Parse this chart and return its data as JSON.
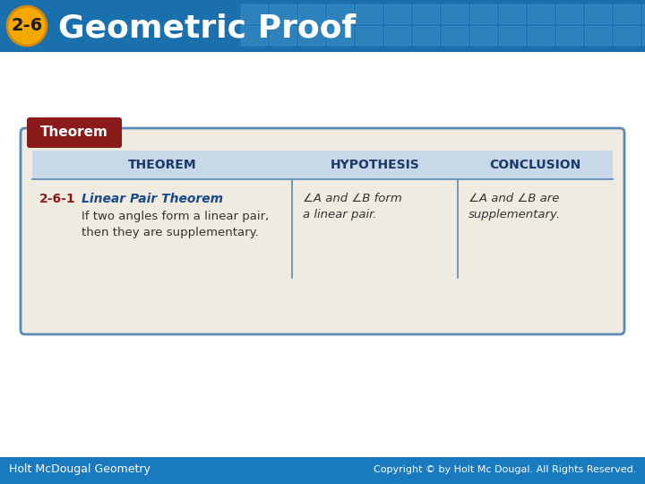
{
  "title": "Geometric Proof",
  "title_number": "2-6",
  "bg_color": "#1a6fad",
  "header_bg_gradient_left": "#1a5f9e",
  "header_bg_gradient_right": "#5aafd4",
  "white_bg": "#ffffff",
  "footer_bg": "#1a7abf",
  "footer_left": "Holt McDougal Geometry",
  "footer_right": "Copyright © by Holt Mc Dougal. All Rights Reserved.",
  "theorem_label": "Theorem",
  "theorem_label_bg": "#8b1a1a",
  "table_bg": "#f0ebe0",
  "table_border": "#5a8ab5",
  "header_row_bg": "#c8d8e8",
  "col_headers": [
    "THEOREM",
    "HYPOTHESIS",
    "CONCLUSION"
  ],
  "theorem_num": "2-6-1",
  "theorem_name": "Linear Pair Theorem",
  "theorem_desc1": "If two angles form a linear pair,",
  "theorem_desc2": "then they are supplementary.",
  "hyp_line1": "∠A and ∠B form",
  "hyp_line2": "a linear pair.",
  "conc_line1": "∠A and ∠B are",
  "conc_line2": "supplementary.",
  "col_header_color": "#1a3a6a",
  "theorem_num_color": "#8b1a1a",
  "theorem_name_color": "#1a4a8a",
  "body_text_color": "#333333"
}
